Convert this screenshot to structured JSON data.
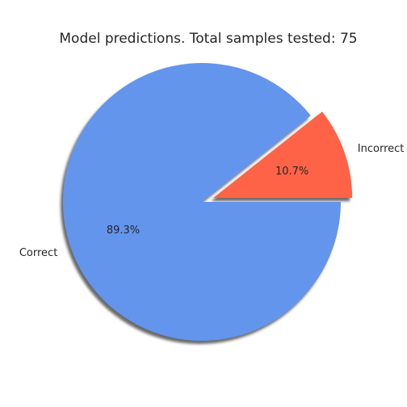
{
  "chart_data": {
    "type": "pie",
    "title": "Model predictions. Total samples tested: 75",
    "slices": [
      {
        "label": "Incorrect",
        "value": 8,
        "percent_label": "10.7%",
        "color": "#ff6347",
        "exploded": true
      },
      {
        "label": "Correct",
        "value": 67,
        "percent_label": "89.3%",
        "color": "#6495ed",
        "exploded": false
      }
    ],
    "total": 75,
    "start_angle_deg": 0,
    "shadow": true,
    "legend": "none"
  }
}
